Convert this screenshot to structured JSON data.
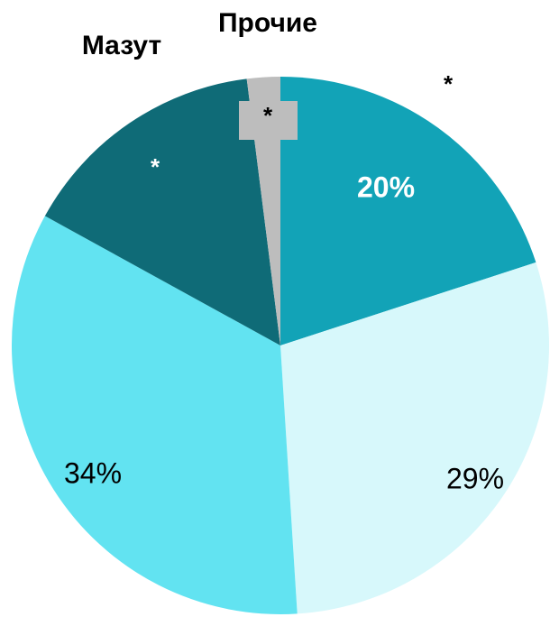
{
  "chart_data": {
    "type": "pie",
    "categories": [
      null,
      null,
      null,
      "Мазут",
      "Прочие"
    ],
    "values": [
      20,
      29,
      34,
      15,
      2
    ],
    "value_labels": [
      "20%",
      "29%",
      "34%",
      null,
      null
    ],
    "colors": [
      "#12a3b7",
      "#d7f8fb",
      "#62e3f1",
      "#0f6b77",
      "#bdbdbd"
    ],
    "annotations": [
      "*",
      "*",
      "*"
    ]
  }
}
